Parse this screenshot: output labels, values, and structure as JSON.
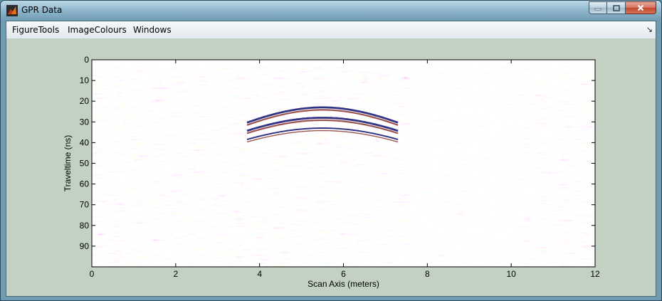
{
  "window": {
    "title": "GPR Data"
  },
  "menu": {
    "items": [
      "FigureTools",
      "ImageColours",
      "Windows"
    ],
    "overflow_glyph": "↘"
  },
  "chart_data": {
    "type": "heatmap",
    "title": "",
    "xlabel": "Scan Axis (meters)",
    "ylabel": "Traveltime (ns)",
    "xlim": [
      0,
      12
    ],
    "ylim": [
      0,
      100
    ],
    "y_reversed": true,
    "xticks": [
      "0",
      "2",
      "4",
      "6",
      "8",
      "10",
      "12"
    ],
    "yticks": [
      "0",
      "10",
      "20",
      "30",
      "40",
      "50",
      "60",
      "70",
      "80",
      "90"
    ],
    "colormap": {
      "negative": "#1c1e78",
      "zero": "#ffffff",
      "positive": "#7a1c14"
    },
    "features": [
      {
        "kind": "hyperbola",
        "apex_x": 5.5,
        "apex_t": 23,
        "amplitude": "strong"
      },
      {
        "kind": "hyperbola",
        "apex_x": 5.5,
        "apex_t": 28,
        "amplitude": "strong"
      },
      {
        "kind": "hyperbola",
        "apex_x": 5.5,
        "apex_t": 33,
        "amplitude": "medium"
      }
    ]
  }
}
